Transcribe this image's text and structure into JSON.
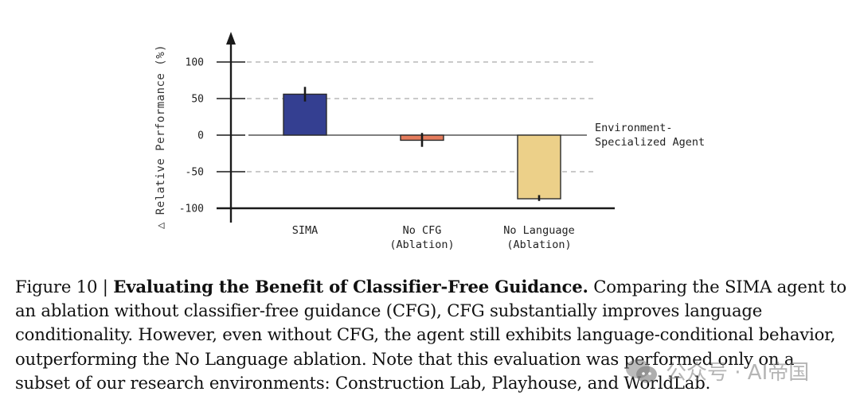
{
  "chart_data": {
    "type": "bar",
    "title": "",
    "xlabel": "",
    "ylabel": "△ Relative Performance (%)",
    "ylim": [
      -100,
      100
    ],
    "yticks": [
      100,
      50,
      0,
      -50,
      -100
    ],
    "ytick_labels": [
      "100",
      "50",
      "0",
      "-50",
      "-100"
    ],
    "grid": "dashed horizontal at 100, 50, -50",
    "categories": [
      "SIMA",
      "No CFG\n(Ablation)",
      "No Language\n(Ablation)"
    ],
    "category_lines": [
      [
        "SIMA"
      ],
      [
        "No CFG",
        "(Ablation)"
      ],
      [
        "No Language",
        "(Ablation)"
      ]
    ],
    "values": [
      56,
      -7,
      -87
    ],
    "error_bars": [
      [
        46,
        66
      ],
      [
        -16,
        3
      ],
      [
        -90,
        -82
      ]
    ],
    "colors": [
      "#343f91",
      "#e57c5d",
      "#ecd089"
    ],
    "reference_line": {
      "value": 0,
      "label_lines": [
        "Environment-",
        "Specialized Agent"
      ]
    }
  },
  "caption": {
    "prefix": "Figure 10 | ",
    "title": "Evaluating the Benefit of Classifier-Free Guidance.",
    "body": " Comparing the SIMA agent to an ablation without classifier-free guidance (CFG), CFG substantially improves language conditionality. However, even without CFG, the agent still exhibits language-conditional behavior, outperforming the No Language ablation. Note that this evaluation was performed only on a subset of our research environments: Construction Lab, Playhouse, and WorldLab."
  },
  "watermark": {
    "text": "公众号 · AI帝国",
    "icon": "wechat-icon"
  }
}
